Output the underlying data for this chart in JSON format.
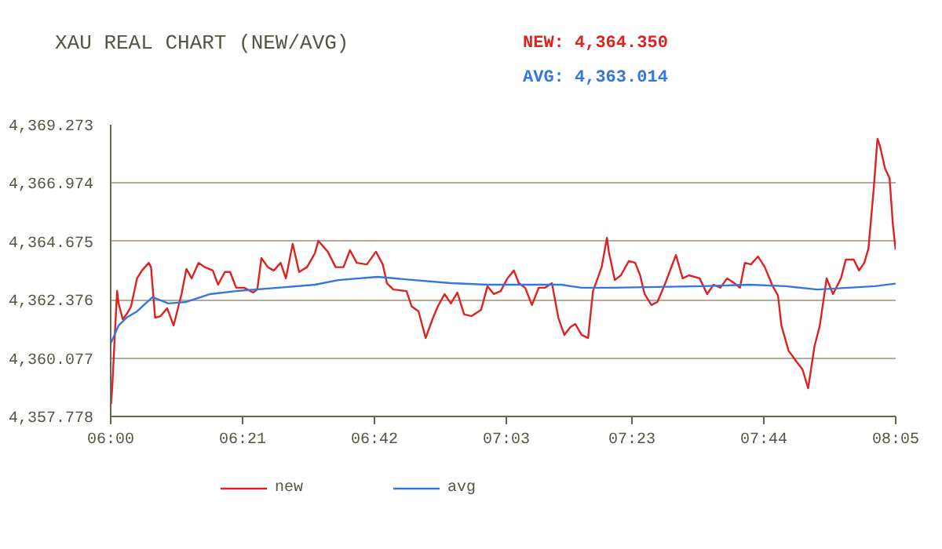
{
  "chart_data": {
    "type": "line",
    "title": "XAU REAL CHART (NEW/AVG)",
    "annotations": [
      "NEW: 4,364.350",
      "AVG: 4,363.014"
    ],
    "xlim": [
      6.0,
      8.0833
    ],
    "xticks": [
      {
        "value": 6.0,
        "label": "06:00"
      },
      {
        "value": 6.35,
        "label": "06:21"
      },
      {
        "value": 6.7,
        "label": "06:42"
      },
      {
        "value": 7.05,
        "label": "07:03"
      },
      {
        "value": 7.3833,
        "label": "07:23"
      },
      {
        "value": 7.7333,
        "label": "07:44"
      },
      {
        "value": 8.0833,
        "label": "08:05"
      }
    ],
    "ylim": [
      4357.778,
      4369.273
    ],
    "yticks": [
      {
        "value": 4357.778,
        "label": "4,357.778"
      },
      {
        "value": 4360.077,
        "label": "4,360.077"
      },
      {
        "value": 4362.376,
        "label": "4,362.376"
      },
      {
        "value": 4364.675,
        "label": "4,364.675"
      },
      {
        "value": 4366.974,
        "label": "4,366.974"
      },
      {
        "value": 4369.273,
        "label": "4,369.273"
      }
    ],
    "grid": "y",
    "legend": "bottom",
    "line_style": "solid",
    "marker": "none",
    "series": [
      {
        "name": "new",
        "color": "#dd2222",
        "x": [
          6.001,
          6.004,
          6.011,
          6.017,
          6.021,
          6.032,
          6.042,
          6.054,
          6.07,
          6.083,
          6.101,
          6.107,
          6.118,
          6.132,
          6.15,
          6.167,
          6.188,
          6.201,
          6.215,
          6.233,
          6.25,
          6.271,
          6.285,
          6.303,
          6.317,
          6.333,
          6.354,
          6.378,
          6.389,
          6.4,
          6.417,
          6.433,
          6.451,
          6.465,
          6.483,
          6.5,
          6.521,
          6.542,
          6.551,
          6.576,
          6.597,
          6.618,
          6.635,
          6.653,
          6.68,
          6.704,
          6.722,
          6.733,
          6.75,
          6.785,
          6.799,
          6.817,
          6.836,
          6.854,
          6.868,
          6.886,
          6.903,
          6.92,
          6.938,
          6.958,
          6.983,
          7.0,
          7.017,
          7.035,
          7.053,
          7.07,
          7.083,
          7.1,
          7.118,
          7.136,
          7.153,
          7.171,
          7.188,
          7.204,
          7.22,
          7.233,
          7.25,
          7.267,
          7.28,
          7.303,
          7.317,
          7.322,
          7.338,
          7.354,
          7.375,
          7.392,
          7.405,
          7.417,
          7.435,
          7.451,
          7.472,
          7.5,
          7.518,
          7.535,
          7.563,
          7.583,
          7.6,
          7.618,
          7.636,
          7.655,
          7.67,
          7.683,
          7.699,
          7.718,
          7.736,
          7.757,
          7.771,
          7.78,
          7.799,
          7.82,
          7.836,
          7.851,
          7.868,
          7.882,
          7.9,
          7.917,
          7.938,
          7.951,
          7.972,
          7.986,
          8.0,
          8.011,
          8.025,
          8.035,
          8.042,
          8.055,
          8.067,
          8.076,
          8.083
        ],
        "values": [
          4358.27,
          4358.89,
          4361.0,
          4362.72,
          4362.23,
          4361.61,
          4361.8,
          4362.11,
          4363.22,
          4363.53,
          4363.83,
          4363.66,
          4361.67,
          4361.73,
          4362.04,
          4361.36,
          4362.6,
          4363.59,
          4363.22,
          4363.83,
          4363.66,
          4363.53,
          4362.97,
          4363.47,
          4363.47,
          4362.85,
          4362.85,
          4362.66,
          4362.78,
          4364.02,
          4363.66,
          4363.53,
          4363.83,
          4363.22,
          4364.58,
          4363.47,
          4363.66,
          4364.21,
          4364.7,
          4364.27,
          4363.66,
          4363.66,
          4364.33,
          4363.83,
          4363.77,
          4364.27,
          4363.77,
          4363.03,
          4362.78,
          4362.72,
          4362.11,
          4361.92,
          4360.87,
          4361.61,
          4362.11,
          4362.6,
          4362.23,
          4362.66,
          4361.8,
          4361.73,
          4361.98,
          4362.91,
          4362.6,
          4362.72,
          4363.22,
          4363.53,
          4363.03,
          4362.85,
          4362.17,
          4362.85,
          4362.85,
          4363.03,
          4361.67,
          4360.99,
          4361.3,
          4361.42,
          4360.99,
          4360.87,
          4362.72,
          4363.66,
          4364.82,
          4364.27,
          4363.15,
          4363.34,
          4363.9,
          4363.83,
          4363.34,
          4362.6,
          4362.17,
          4362.29,
          4363.03,
          4364.14,
          4363.22,
          4363.34,
          4363.22,
          4362.6,
          4362.97,
          4362.85,
          4363.22,
          4363.03,
          4362.85,
          4363.83,
          4363.77,
          4364.08,
          4363.66,
          4362.91,
          4362.54,
          4361.36,
          4360.37,
          4359.94,
          4359.63,
          4358.89,
          4360.56,
          4361.36,
          4363.22,
          4362.6,
          4363.22,
          4363.96,
          4363.96,
          4363.53,
          4363.83,
          4364.39,
          4366.74,
          4368.72,
          4368.41,
          4367.55,
          4367.17,
          4365.32,
          4364.35
        ]
      },
      {
        "name": "avg",
        "color": "#3377dd",
        "x": [
          6.001,
          6.021,
          6.042,
          6.07,
          6.111,
          6.153,
          6.201,
          6.264,
          6.333,
          6.445,
          6.542,
          6.604,
          6.708,
          6.805,
          6.903,
          7.0,
          7.195,
          7.25,
          7.333,
          7.57,
          7.695,
          7.792,
          7.875,
          7.958,
          8.028,
          8.083
        ],
        "values": [
          4360.68,
          4361.36,
          4361.67,
          4361.92,
          4362.48,
          4362.23,
          4362.29,
          4362.6,
          4362.72,
          4362.85,
          4362.97,
          4363.15,
          4363.28,
          4363.15,
          4363.03,
          4362.97,
          4362.97,
          4362.85,
          4362.85,
          4362.91,
          4362.97,
          4362.91,
          4362.78,
          4362.85,
          4362.91,
          4363.01
        ]
      }
    ]
  }
}
